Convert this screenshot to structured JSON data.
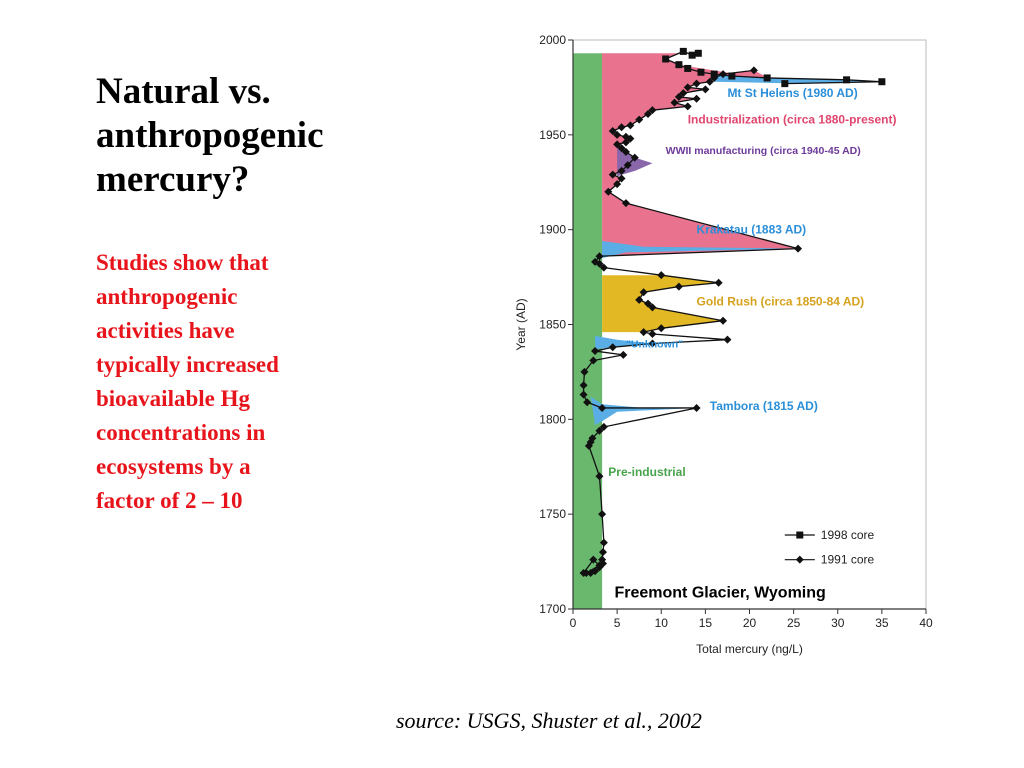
{
  "slide": {
    "title_lines": [
      "Natural vs.",
      "anthropogenic",
      "mercury?"
    ],
    "body_lines": [
      "Studies show that",
      "anthropogenic",
      "activities have",
      "typically increased",
      "bioavailable Hg",
      "concentrations in",
      "ecosystems by a",
      "factor of 2 – 10"
    ],
    "source": "source: USGS, Shuster et al., 2002"
  },
  "colors": {
    "text_red": "#e8141b",
    "preindustrial_green": "#6ab86e",
    "industrial_pink": "#e9728f",
    "volcanic_blue": "#5aaee5",
    "gold_rush_yellow": "#e2b824",
    "wwii_purple": "#8a66aa",
    "label_blue": "#2a8fd8",
    "label_pink": "#e0456d",
    "label_purple": "#6e3a9a",
    "label_gold": "#d6a21d",
    "label_green": "#4aa34d"
  },
  "chart_data": {
    "type": "line",
    "title": "Freemont Glacier, Wyoming",
    "xlabel": "Total mercury (ng/L)",
    "ylabel": "Year (AD)",
    "xlim": [
      0,
      40
    ],
    "ylim": [
      1700,
      2000
    ],
    "x_ticks": [
      "0",
      "5",
      "10",
      "15",
      "20",
      "25",
      "30",
      "35",
      "40"
    ],
    "y_ticks": [
      "1700",
      "1750",
      "1800",
      "1850",
      "1900",
      "1950",
      "2000"
    ],
    "legend": {
      "position": "bottom-right",
      "entries": [
        "1998 core",
        "1991 core"
      ]
    },
    "annotations": [
      "Mt St Helens (1980 AD)",
      "Industrialization (circa 1880-present)",
      "WWII manufacturing (circa 1940-45 AD)",
      "Krakatau (1883 AD)",
      "Gold Rush (circa 1850-84 AD)",
      "\"Unknown\"",
      "Tambora (1815 AD)",
      "Pre-industrial"
    ],
    "regions": [
      {
        "name": "Pre-industrial",
        "years": [
          1700,
          1993
        ]
      },
      {
        "name": "Industrialization (circa 1880-present)",
        "years": [
          1880,
          1993
        ]
      },
      {
        "name": "WWII manufacturing (circa 1940-45 AD)",
        "years": [
          1928,
          1945
        ]
      },
      {
        "name": "Gold Rush (circa 1850-84 AD)",
        "years": [
          1847,
          1873
        ]
      },
      {
        "name": "Krakatau (1883 AD)",
        "years": [
          1885,
          1894
        ]
      },
      {
        "name": "\"Unknown\"",
        "years": [
          1838,
          1844
        ]
      },
      {
        "name": "Tambora (1815 AD)",
        "years": [
          1797,
          1812
        ]
      },
      {
        "name": "Mt St Helens (1980 AD)",
        "years": [
          1976,
          1983
        ]
      }
    ],
    "series": [
      {
        "name": "1998 core",
        "marker": "square",
        "x": [
          14.2,
          13.5,
          12.5,
          10.5,
          12,
          13,
          14.5,
          16,
          18,
          22,
          31,
          35,
          24
        ],
        "y": [
          1993,
          1992,
          1994,
          1990,
          1987,
          1985,
          1983,
          1982,
          1981,
          1980,
          1979,
          1978,
          1977
        ]
      },
      {
        "name": "1991 core",
        "marker": "diamond",
        "x": [
          20.5,
          17,
          16,
          15.5,
          14,
          13,
          15,
          12.5,
          12,
          14,
          11.5,
          13,
          9,
          8.5,
          7.5,
          6.5,
          5.5,
          4.5,
          5,
          6,
          6.5,
          6,
          5,
          5.5,
          6,
          7,
          6.2,
          5.5,
          4.5,
          5.5,
          5,
          4,
          6,
          25.5,
          3,
          2.5,
          3,
          3.5,
          10,
          16.5,
          12,
          8,
          7.5,
          8.5,
          9,
          17,
          10,
          8,
          9,
          17.5,
          9,
          4.5,
          2.5,
          5.7,
          2.3,
          1.3,
          1.2,
          1.2,
          1.6,
          3.3,
          14,
          3.5,
          3,
          2.2,
          2,
          1.8,
          3,
          3.3,
          3.5,
          3.4,
          3.3,
          3.4,
          3,
          2.5,
          2,
          1.5,
          3,
          2.3,
          1.2
        ],
        "y": [
          1984,
          1982,
          1980,
          1978,
          1977,
          1975,
          1974,
          1972,
          1970,
          1969,
          1967,
          1965,
          1963,
          1961,
          1958,
          1955,
          1954,
          1952,
          1950,
          1949,
          1948,
          1946,
          1945,
          1943,
          1941,
          1938,
          1934,
          1931,
          1929,
          1927,
          1924,
          1920,
          1914,
          1890,
          1886,
          1883,
          1882,
          1880,
          1876,
          1872,
          1870,
          1867,
          1863,
          1861,
          1859,
          1852,
          1848,
          1846,
          1845,
          1842,
          1840,
          1838,
          1836,
          1834,
          1831,
          1825,
          1818,
          1813,
          1809,
          1806,
          1806,
          1796,
          1794,
          1790,
          1788,
          1786,
          1770,
          1750,
          1735,
          1730,
          1726,
          1724,
          1722,
          1720,
          1719,
          1719,
          1723,
          1726,
          1719
        ]
      }
    ]
  }
}
